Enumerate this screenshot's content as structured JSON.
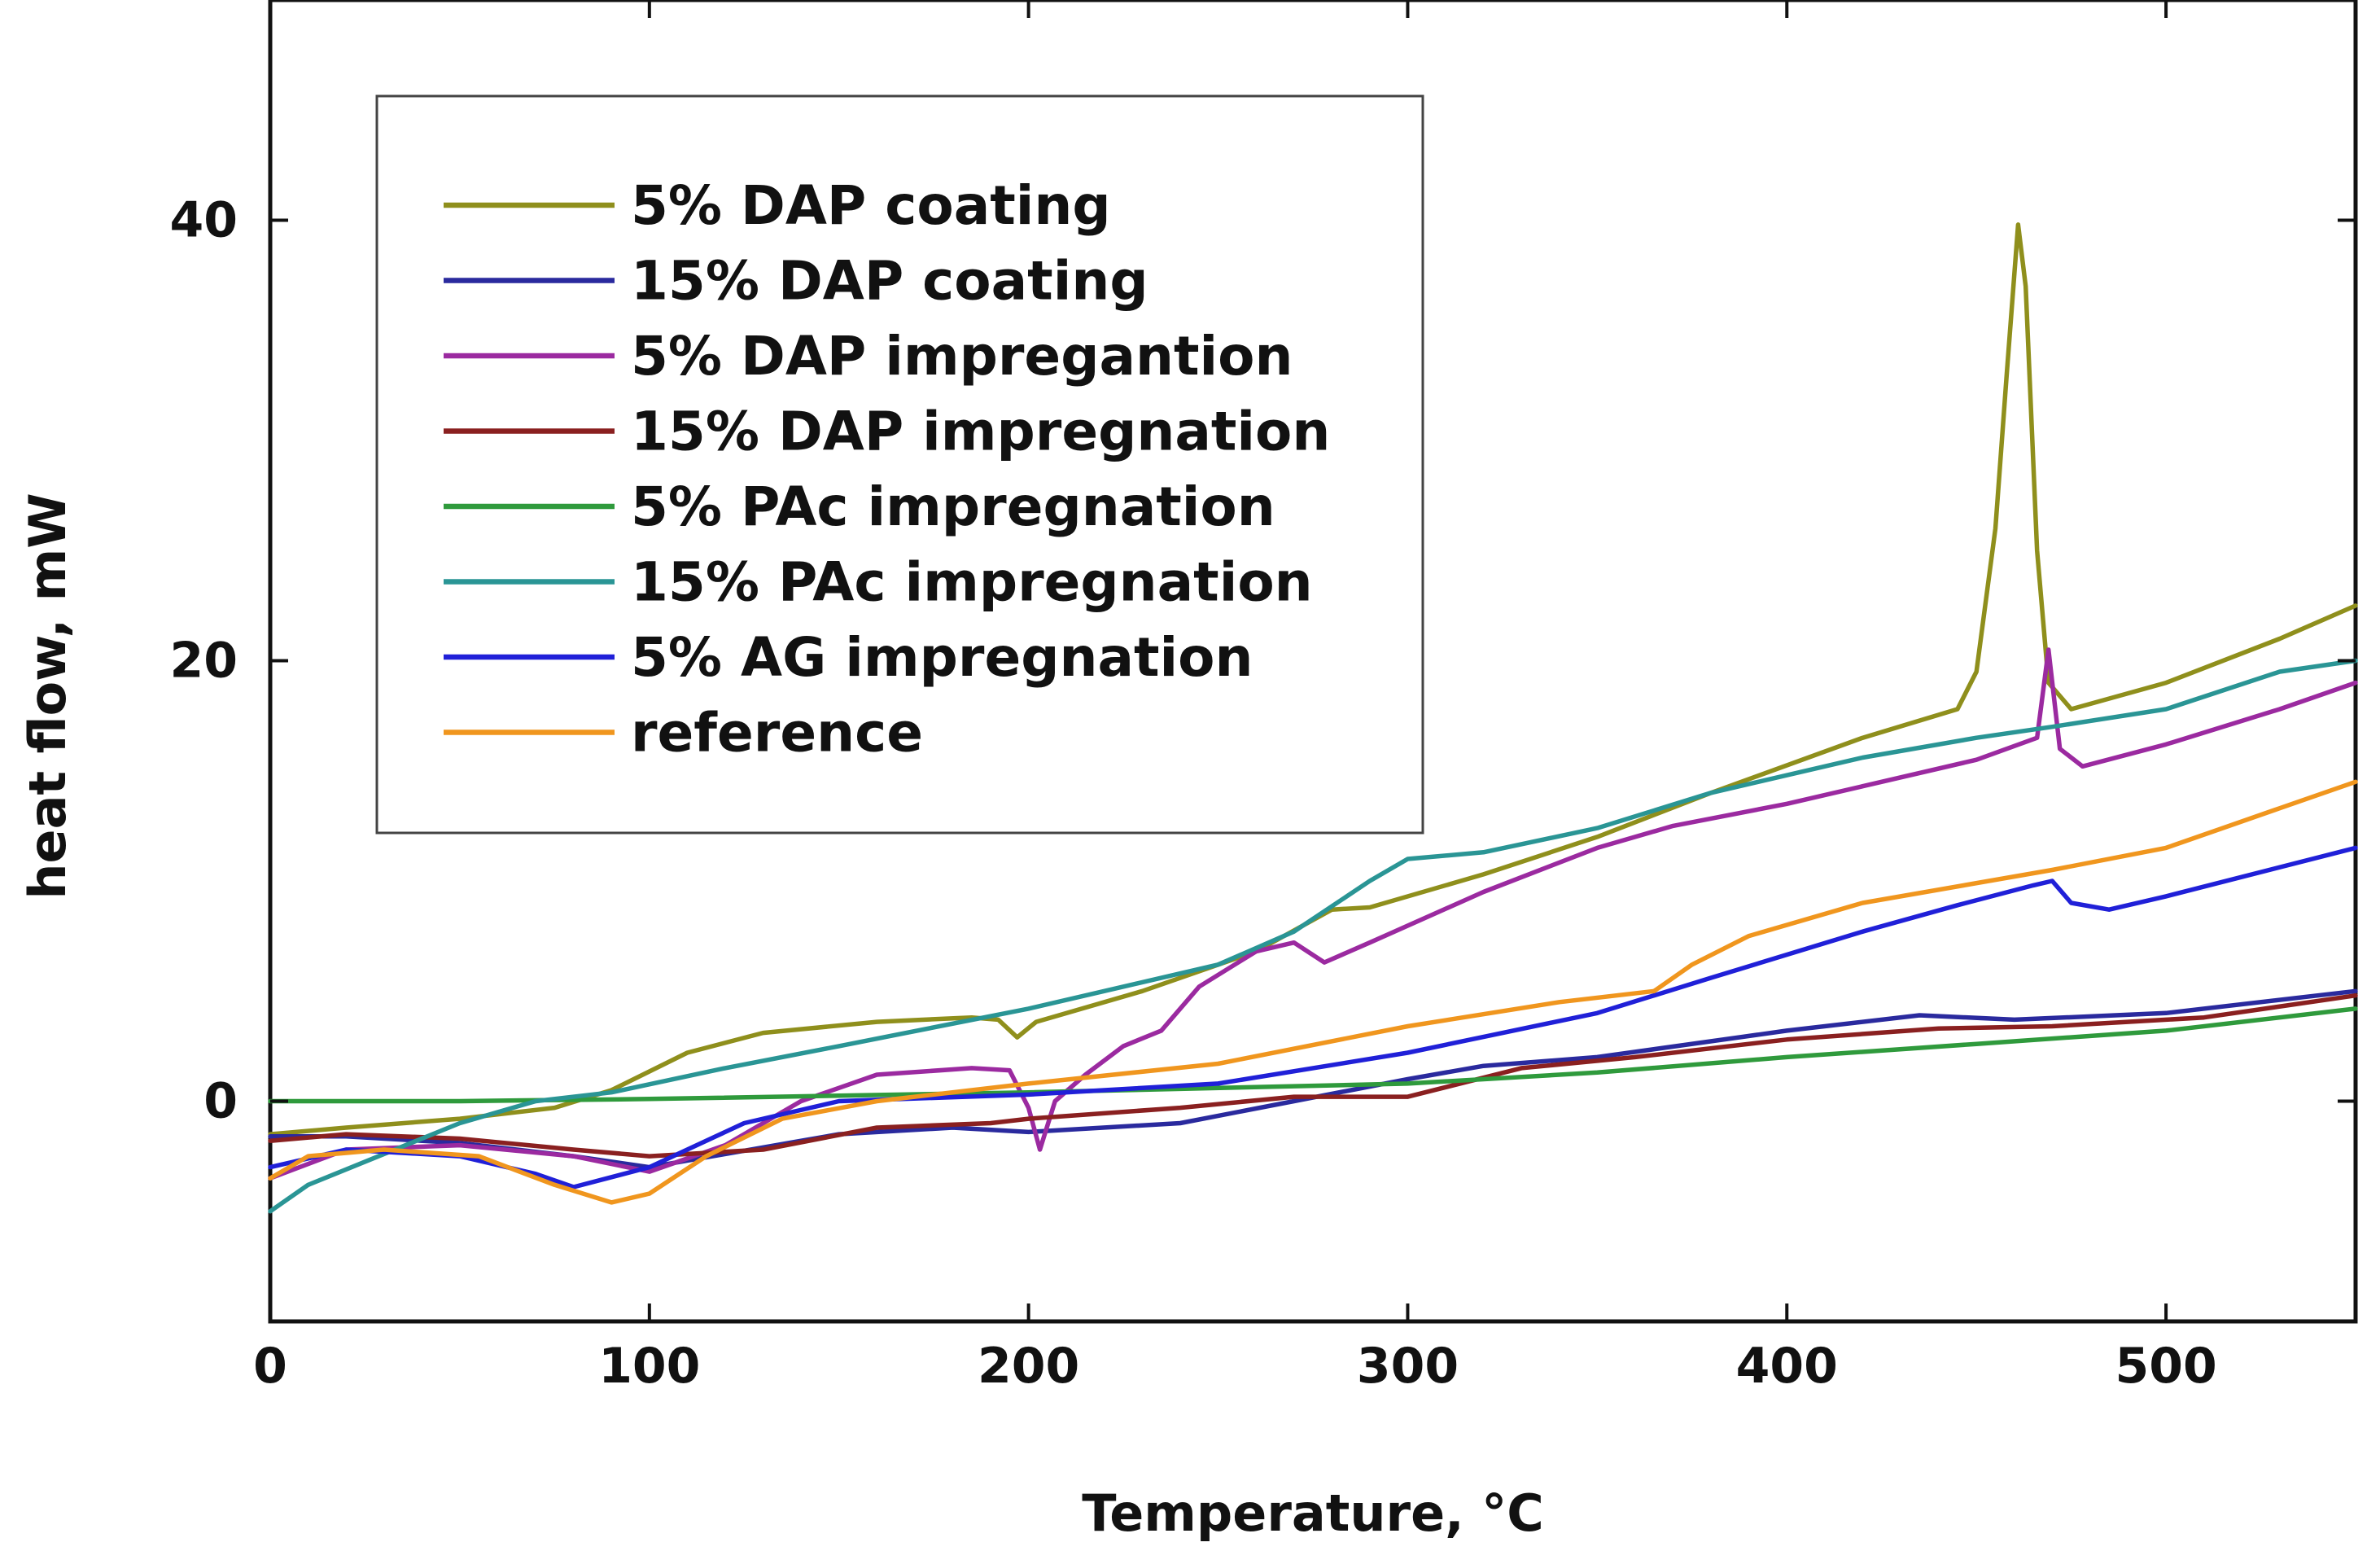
{
  "chart_data": {
    "type": "line",
    "title": "",
    "xlabel": "Temperature, °C",
    "ylabel": "heat flow, mW",
    "xlim": [
      0,
      550
    ],
    "ylim": [
      -10,
      50
    ],
    "xticks": [
      0,
      100,
      200,
      300,
      400,
      500
    ],
    "yticks": [
      0,
      20,
      40
    ],
    "xtick_labels": [
      "0",
      "100",
      "200",
      "300",
      "400",
      "500"
    ],
    "ytick_labels": [
      "0",
      "20",
      "40"
    ],
    "grid": false,
    "legend_position": "top-left",
    "series": [
      {
        "name": "5% DAP coating",
        "color": "#8f8f1c",
        "points": [
          [
            0,
            -1.5
          ],
          [
            20,
            -1.2
          ],
          [
            50,
            -0.8
          ],
          [
            75,
            -0.3
          ],
          [
            90,
            0.5
          ],
          [
            110,
            2.2
          ],
          [
            130,
            3.1
          ],
          [
            160,
            3.6
          ],
          [
            185,
            3.8
          ],
          [
            192,
            3.7
          ],
          [
            197,
            2.9
          ],
          [
            202,
            3.6
          ],
          [
            230,
            5.0
          ],
          [
            260,
            6.8
          ],
          [
            280,
            8.7
          ],
          [
            290,
            8.8
          ],
          [
            320,
            10.3
          ],
          [
            350,
            12.0
          ],
          [
            380,
            14.0
          ],
          [
            420,
            16.5
          ],
          [
            445,
            17.8
          ],
          [
            450,
            19.5
          ],
          [
            455,
            26.0
          ],
          [
            458,
            33.0
          ],
          [
            461,
            39.8
          ],
          [
            463,
            37.0
          ],
          [
            466,
            25.0
          ],
          [
            469,
            19.0
          ],
          [
            475,
            17.8
          ],
          [
            500,
            19.0
          ],
          [
            530,
            21.0
          ],
          [
            550,
            22.5
          ]
        ]
      },
      {
        "name": "15% DAP coating",
        "color": "#2a2a9e",
        "points": [
          [
            0,
            -1.6
          ],
          [
            20,
            -1.6
          ],
          [
            50,
            -1.9
          ],
          [
            80,
            -2.5
          ],
          [
            100,
            -3.0
          ],
          [
            120,
            -2.4
          ],
          [
            150,
            -1.5
          ],
          [
            180,
            -1.2
          ],
          [
            200,
            -1.4
          ],
          [
            240,
            -1.0
          ],
          [
            270,
            0.0
          ],
          [
            300,
            1.0
          ],
          [
            320,
            1.6
          ],
          [
            350,
            2.0
          ],
          [
            400,
            3.2
          ],
          [
            435,
            3.9
          ],
          [
            460,
            3.7
          ],
          [
            500,
            4.0
          ],
          [
            550,
            5.0
          ]
        ]
      },
      {
        "name": "5% DAP impregantion",
        "color": "#9b2aa0",
        "points": [
          [
            0,
            -3.5
          ],
          [
            20,
            -2.2
          ],
          [
            50,
            -2.0
          ],
          [
            80,
            -2.5
          ],
          [
            100,
            -3.2
          ],
          [
            120,
            -2.0
          ],
          [
            140,
            0.0
          ],
          [
            160,
            1.2
          ],
          [
            185,
            1.5
          ],
          [
            195,
            1.4
          ],
          [
            200,
            -0.3
          ],
          [
            203,
            -2.2
          ],
          [
            207,
            0.0
          ],
          [
            215,
            1.2
          ],
          [
            225,
            2.5
          ],
          [
            235,
            3.2
          ],
          [
            245,
            5.2
          ],
          [
            260,
            6.8
          ],
          [
            270,
            7.2
          ],
          [
            278,
            6.3
          ],
          [
            290,
            7.2
          ],
          [
            320,
            9.5
          ],
          [
            350,
            11.5
          ],
          [
            370,
            12.5
          ],
          [
            400,
            13.5
          ],
          [
            420,
            14.3
          ],
          [
            450,
            15.5
          ],
          [
            466,
            16.5
          ],
          [
            469,
            20.5
          ],
          [
            472,
            16.0
          ],
          [
            478,
            15.2
          ],
          [
            500,
            16.2
          ],
          [
            530,
            17.8
          ],
          [
            550,
            19.0
          ]
        ]
      },
      {
        "name": "15% DAP impregnation",
        "color": "#8a2020",
        "points": [
          [
            0,
            -1.8
          ],
          [
            20,
            -1.5
          ],
          [
            50,
            -1.7
          ],
          [
            80,
            -2.2
          ],
          [
            100,
            -2.5
          ],
          [
            130,
            -2.2
          ],
          [
            160,
            -1.2
          ],
          [
            190,
            -1.0
          ],
          [
            200,
            -0.8
          ],
          [
            240,
            -0.3
          ],
          [
            270,
            0.2
          ],
          [
            300,
            0.2
          ],
          [
            330,
            1.5
          ],
          [
            360,
            2.0
          ],
          [
            400,
            2.8
          ],
          [
            440,
            3.3
          ],
          [
            470,
            3.4
          ],
          [
            510,
            3.8
          ],
          [
            550,
            4.8
          ]
        ]
      },
      {
        "name": "5% PAc impregnation",
        "color": "#2f9a3c",
        "points": [
          [
            0,
            0.0
          ],
          [
            50,
            0.0
          ],
          [
            100,
            0.1
          ],
          [
            200,
            0.4
          ],
          [
            300,
            0.8
          ],
          [
            350,
            1.3
          ],
          [
            400,
            2.0
          ],
          [
            450,
            2.6
          ],
          [
            500,
            3.2
          ],
          [
            550,
            4.2
          ]
        ]
      },
      {
        "name": "15% PAc impregnation",
        "color": "#2a9595",
        "points": [
          [
            0,
            -5.0
          ],
          [
            10,
            -3.8
          ],
          [
            30,
            -2.4
          ],
          [
            50,
            -1.0
          ],
          [
            70,
            0.0
          ],
          [
            90,
            0.4
          ],
          [
            120,
            1.5
          ],
          [
            150,
            2.5
          ],
          [
            200,
            4.2
          ],
          [
            250,
            6.2
          ],
          [
            270,
            7.7
          ],
          [
            290,
            10.0
          ],
          [
            300,
            11.0
          ],
          [
            320,
            11.3
          ],
          [
            350,
            12.4
          ],
          [
            380,
            14.0
          ],
          [
            420,
            15.6
          ],
          [
            450,
            16.5
          ],
          [
            470,
            17.0
          ],
          [
            500,
            17.8
          ],
          [
            530,
            19.5
          ],
          [
            550,
            20.0
          ]
        ]
      },
      {
        "name": "5% AG impregnation",
        "color": "#2020d8",
        "points": [
          [
            0,
            -3.0
          ],
          [
            20,
            -2.2
          ],
          [
            50,
            -2.5
          ],
          [
            70,
            -3.3
          ],
          [
            80,
            -3.9
          ],
          [
            100,
            -3.0
          ],
          [
            125,
            -1.0
          ],
          [
            150,
            0.0
          ],
          [
            200,
            0.3
          ],
          [
            250,
            0.8
          ],
          [
            300,
            2.2
          ],
          [
            350,
            4.0
          ],
          [
            380,
            5.6
          ],
          [
            420,
            7.7
          ],
          [
            445,
            8.9
          ],
          [
            465,
            9.8
          ],
          [
            470,
            10.0
          ],
          [
            475,
            9.0
          ],
          [
            485,
            8.7
          ],
          [
            500,
            9.3
          ],
          [
            550,
            11.5
          ]
        ]
      },
      {
        "name": "reference",
        "color": "#f0961e",
        "points": [
          [
            0,
            -3.5
          ],
          [
            10,
            -2.5
          ],
          [
            30,
            -2.2
          ],
          [
            55,
            -2.5
          ],
          [
            75,
            -3.8
          ],
          [
            90,
            -4.6
          ],
          [
            100,
            -4.2
          ],
          [
            115,
            -2.5
          ],
          [
            135,
            -0.8
          ],
          [
            160,
            0.0
          ],
          [
            200,
            0.8
          ],
          [
            250,
            1.7
          ],
          [
            300,
            3.4
          ],
          [
            340,
            4.5
          ],
          [
            365,
            5.0
          ],
          [
            375,
            6.2
          ],
          [
            390,
            7.5
          ],
          [
            420,
            9.0
          ],
          [
            470,
            10.5
          ],
          [
            500,
            11.5
          ],
          [
            530,
            13.3
          ],
          [
            550,
            14.5
          ]
        ]
      }
    ]
  }
}
